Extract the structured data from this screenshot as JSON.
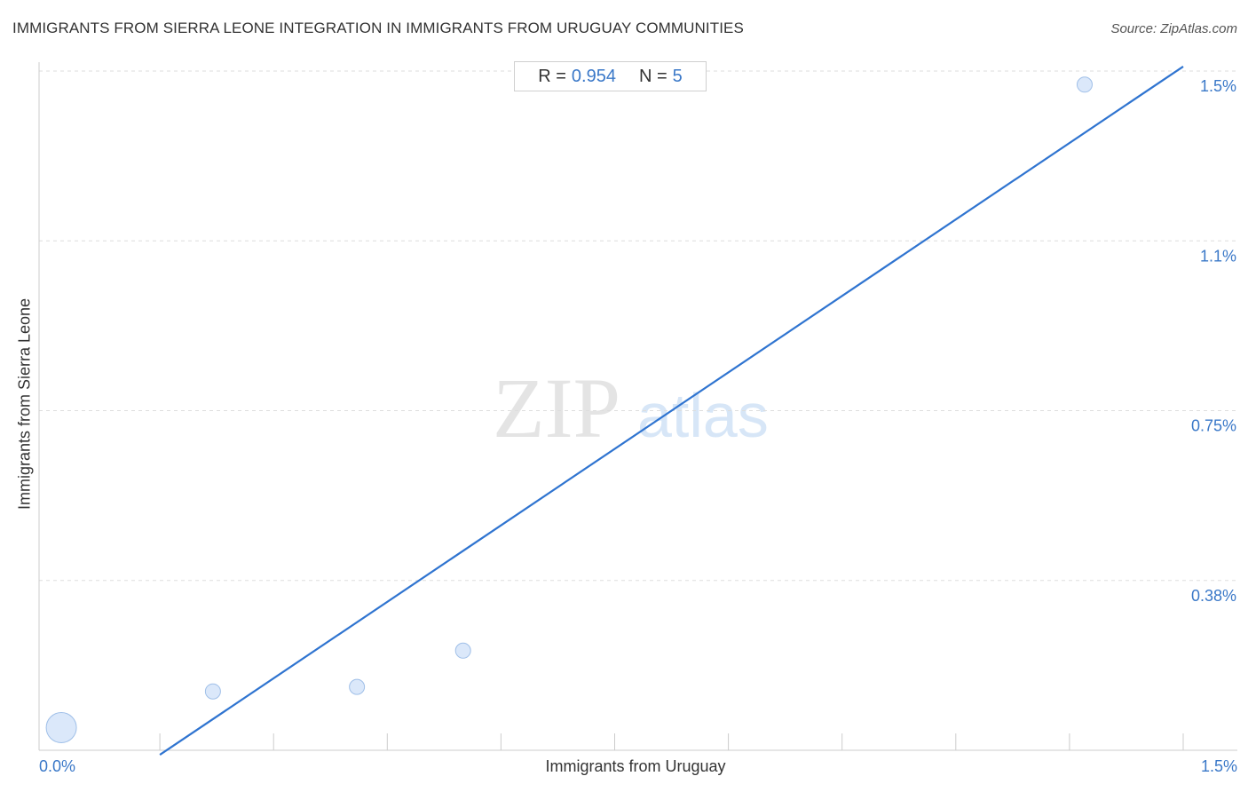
{
  "title": "IMMIGRANTS FROM SIERRA LEONE INTEGRATION IN IMMIGRANTS FROM URUGUAY COMMUNITIES",
  "source": "Source: ZipAtlas.com",
  "stats": {
    "r_label": "R =",
    "r_value": "0.954",
    "n_label": "N =",
    "n_value": "5"
  },
  "colors": {
    "accent": "#3a78c8",
    "trend": "#2f74d0",
    "point_fill": "#dbe8fa",
    "point_stroke": "#9fbfe8",
    "grid": "#dddddd"
  },
  "chart_data": {
    "type": "scatter",
    "title": "IMMIGRANTS FROM SIERRA LEONE INTEGRATION IN IMMIGRANTS FROM URUGUAY COMMUNITIES",
    "xlabel": "Immigrants from Uruguay",
    "ylabel": "Immigrants from Sierra Leone",
    "x_tick_labels": [
      "0.0%",
      "1.5%"
    ],
    "y_tick_labels": [
      "1.5%",
      "1.1%",
      "0.75%",
      "0.38%"
    ],
    "y_ticks": [
      1.5,
      1.125,
      0.75,
      0.375
    ],
    "xlim": [
      0.0,
      1.5
    ],
    "ylim": [
      0.0,
      1.5
    ],
    "grid": true,
    "points": [
      {
        "x": 0.02,
        "y": 0.05,
        "size": "large"
      },
      {
        "x": 0.22,
        "y": 0.13,
        "size": "small"
      },
      {
        "x": 0.41,
        "y": 0.14,
        "size": "small"
      },
      {
        "x": 0.55,
        "y": 0.22,
        "size": "small"
      },
      {
        "x": 1.37,
        "y": 1.47,
        "size": "small"
      }
    ],
    "trendline": {
      "x": [
        0.15,
        1.5
      ],
      "y": [
        -0.01,
        1.51
      ]
    },
    "watermark": "ZIPatlas"
  }
}
